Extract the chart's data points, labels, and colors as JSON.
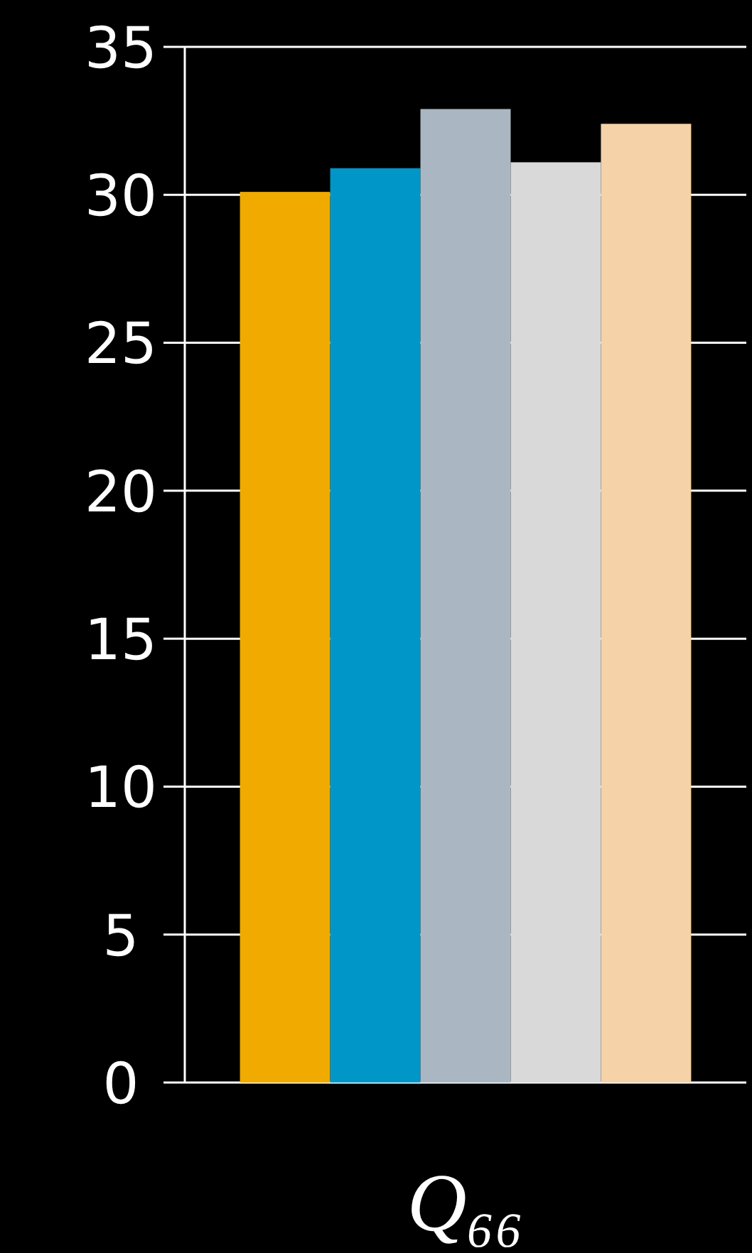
{
  "chart_data": {
    "type": "bar",
    "categories": [
      "Q₆₆"
    ],
    "series": [
      {
        "color": "#f0aa00",
        "values": [
          30.1
        ]
      },
      {
        "color": "#0096c8",
        "values": [
          30.9
        ]
      },
      {
        "color": "#aab7c3",
        "values": [
          32.9
        ]
      },
      {
        "color": "#d9d9d9",
        "values": [
          31.1
        ]
      },
      {
        "color": "#f5d2a8",
        "values": [
          32.4
        ]
      }
    ],
    "ylim": [
      0,
      35
    ],
    "yticks": [
      0,
      5,
      10,
      15,
      20,
      25,
      30,
      35
    ],
    "grid": "y"
  }
}
